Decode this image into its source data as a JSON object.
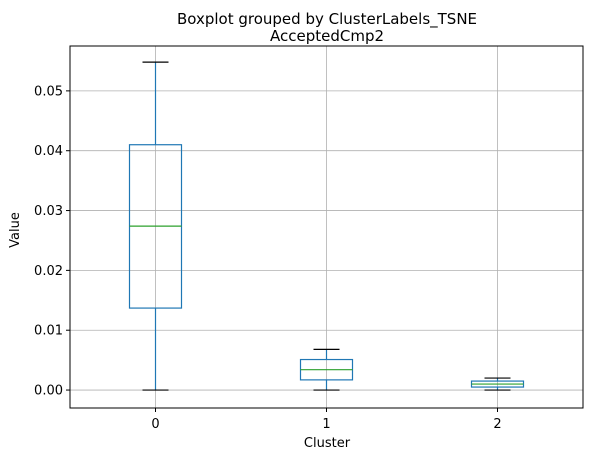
{
  "chart_data": {
    "type": "box",
    "suptitle": "Boxplot grouped by ClusterLabels_TSNE",
    "title": "AcceptedCmp2",
    "xlabel": "Cluster",
    "ylabel": "Value",
    "ylim": [
      -0.003,
      0.0575
    ],
    "yticks": [
      "0.00",
      "0.01",
      "0.02",
      "0.03",
      "0.04",
      "0.05"
    ],
    "ytick_values": [
      0.0,
      0.01,
      0.02,
      0.03,
      0.04,
      0.05
    ],
    "grid": true,
    "categories": [
      "0",
      "1",
      "2"
    ],
    "boxes": [
      {
        "category": "0",
        "whisker_low": 0.0,
        "q1": 0.0137,
        "median": 0.0274,
        "q3": 0.041,
        "whisker_high": 0.0548
      },
      {
        "category": "1",
        "whisker_low": 0.0,
        "q1": 0.0017,
        "median": 0.0034,
        "q3": 0.0051,
        "whisker_high": 0.0068
      },
      {
        "category": "2",
        "whisker_low": 0.0,
        "q1": 0.0005,
        "median": 0.001,
        "q3": 0.0015,
        "whisker_high": 0.002
      }
    ],
    "colors": {
      "box": "#1f77b4",
      "median": "#2ca02c",
      "whisker_cap": "#000000",
      "grid": "#b0b0b0"
    }
  }
}
